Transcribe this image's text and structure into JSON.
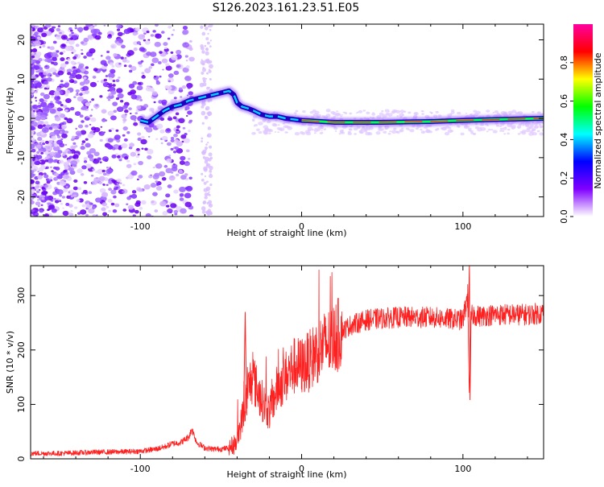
{
  "title": "S126.2023.161.23.51.E05",
  "chart_data": [
    {
      "type": "heatmap",
      "xlabel": "Height of straight line (km)",
      "ylabel": "Frequency (Hz)",
      "xlim": [
        -168,
        150
      ],
      "ylim": [
        -25,
        24
      ],
      "xticks": [
        -100,
        0,
        100
      ],
      "yticks": [
        -20,
        -10,
        0,
        10,
        20
      ],
      "colorbar": {
        "label": "Normalized spectral amplitude",
        "range": [
          0.0,
          1.0
        ],
        "ticks": [
          "0.0",
          "0.2",
          "0.4",
          "0.6",
          "0.8"
        ],
        "colors": [
          "#ffffff",
          "#8000ff",
          "#0000ff",
          "#00ffff",
          "#00ff00",
          "#ffff00",
          "#ff0000",
          "#ff00a0"
        ]
      },
      "ridge": [
        {
          "x": -100,
          "y": -0.5
        },
        {
          "x": -95,
          "y": -1.0
        },
        {
          "x": -90,
          "y": 0.5
        },
        {
          "x": -85,
          "y": 2.0
        },
        {
          "x": -80,
          "y": 3.0
        },
        {
          "x": -75,
          "y": 3.5
        },
        {
          "x": -70,
          "y": 4.5
        },
        {
          "x": -65,
          "y": 5.0
        },
        {
          "x": -60,
          "y": 5.5
        },
        {
          "x": -55,
          "y": 6.0
        },
        {
          "x": -50,
          "y": 6.5
        },
        {
          "x": -45,
          "y": 7.0
        },
        {
          "x": -42,
          "y": 6.0
        },
        {
          "x": -40,
          "y": 4.0
        },
        {
          "x": -37,
          "y": 3.0
        },
        {
          "x": -33,
          "y": 2.5
        },
        {
          "x": -30,
          "y": 2.0
        },
        {
          "x": -25,
          "y": 1.0
        },
        {
          "x": -20,
          "y": 0.5
        },
        {
          "x": -15,
          "y": 0.5
        },
        {
          "x": -10,
          "y": 0.0
        },
        {
          "x": 0,
          "y": -0.5
        },
        {
          "x": 20,
          "y": -1.0
        },
        {
          "x": 50,
          "y": -1.0
        },
        {
          "x": 80,
          "y": -0.8
        },
        {
          "x": 100,
          "y": -0.5
        },
        {
          "x": 150,
          "y": 0.0
        }
      ]
    },
    {
      "type": "line",
      "xlabel": "Height of straight line (km)",
      "ylabel": "SNR (10 * v/v)",
      "xlim": [
        -168,
        150
      ],
      "ylim": [
        0,
        355
      ],
      "xticks": [
        -100,
        0,
        100
      ],
      "yticks": [
        0,
        100,
        200,
        300
      ],
      "series": [
        {
          "color": "#ff2020",
          "x": [
            -168,
            -150,
            -130,
            -110,
            -100,
            -90,
            -85,
            -80,
            -75,
            -70,
            -68,
            -65,
            -60,
            -55,
            -50,
            -45,
            -40,
            -38,
            -35,
            -32,
            -30,
            -28,
            -25,
            -20,
            -15,
            -10,
            -5,
            0,
            5,
            10,
            15,
            20,
            25,
            30,
            40,
            50,
            60,
            80,
            100,
            103,
            104,
            105,
            106,
            110,
            120,
            130,
            140,
            150
          ],
          "y": [
            10,
            10,
            12,
            13,
            14,
            18,
            22,
            28,
            30,
            40,
            55,
            30,
            20,
            18,
            18,
            20,
            30,
            60,
            100,
            140,
            150,
            130,
            110,
            85,
            130,
            150,
            170,
            170,
            180,
            200,
            210,
            220,
            235,
            245,
            255,
            258,
            260,
            260,
            255,
            300,
            110,
            260,
            265,
            262,
            265,
            265,
            265,
            268
          ]
        }
      ]
    }
  ]
}
